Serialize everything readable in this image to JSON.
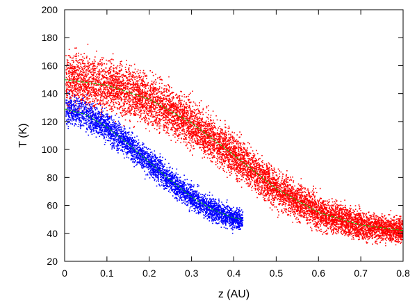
{
  "chart_data": {
    "type": "scatter",
    "xlabel": "z (AU)",
    "ylabel": "T (K)",
    "xlim": [
      0,
      0.8
    ],
    "ylim": [
      20,
      200
    ],
    "xticks": [
      "0",
      "0.1",
      "0.2",
      "0.3",
      "0.4",
      "0.5",
      "0.6",
      "0.7",
      "0.8"
    ],
    "yticks": [
      "20",
      "40",
      "60",
      "80",
      "100",
      "120",
      "140",
      "160",
      "180",
      "200"
    ],
    "grid": false,
    "legend": "none",
    "series": [
      {
        "color": "#ff0000",
        "kind": "scatter",
        "x_range": [
          0,
          0.8
        ],
        "band_center": [
          [
            0,
            150
          ],
          [
            0.1,
            146
          ],
          [
            0.2,
            136
          ],
          [
            0.3,
            119
          ],
          [
            0.4,
            96
          ],
          [
            0.5,
            72
          ],
          [
            0.6,
            55
          ],
          [
            0.7,
            46
          ],
          [
            0.75,
            44
          ],
          [
            0.8,
            42
          ]
        ],
        "band_halfwidth_K": 18
      },
      {
        "color": "#0000ff",
        "kind": "scatter",
        "x_range": [
          0,
          0.42
        ],
        "band_center": [
          [
            0,
            129
          ],
          [
            0.05,
            125
          ],
          [
            0.1,
            116
          ],
          [
            0.15,
            104
          ],
          [
            0.2,
            91
          ],
          [
            0.25,
            78
          ],
          [
            0.3,
            66
          ],
          [
            0.35,
            57
          ],
          [
            0.4,
            51
          ],
          [
            0.42,
            50
          ]
        ],
        "band_halfwidth_K": 10
      },
      {
        "color": "#00cc00",
        "kind": "line",
        "x": [
          0,
          0.1,
          0.2,
          0.3,
          0.4,
          0.5,
          0.6,
          0.7,
          0.75,
          0.8
        ],
        "y": [
          150,
          146,
          136,
          119,
          96,
          72,
          55,
          46,
          44,
          42
        ]
      },
      {
        "color": "#00cc00",
        "kind": "line",
        "x": [
          0,
          0.05,
          0.1,
          0.15,
          0.2,
          0.25,
          0.3,
          0.35,
          0.4,
          0.42
        ],
        "y": [
          129,
          125,
          116,
          104,
          91,
          78,
          66,
          57,
          51,
          50
        ]
      }
    ]
  }
}
